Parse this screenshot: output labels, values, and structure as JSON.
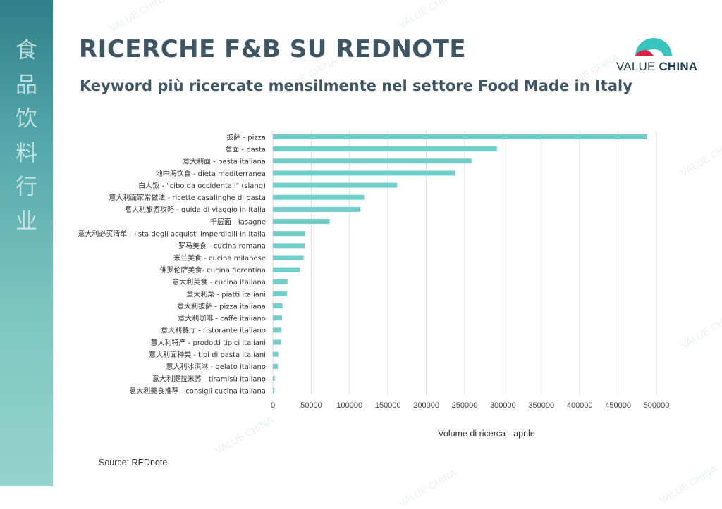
{
  "sidebar": {
    "chars": [
      "食",
      "品",
      "饮",
      "料",
      "行",
      "业"
    ]
  },
  "header": {
    "title": "RICERCHE F&B SU REDNOTE",
    "subtitle": "Keyword più ricercate mensilmente nel settore Food Made in Italy"
  },
  "logo": {
    "word1": "VALUE",
    "word2": "CHINA"
  },
  "watermark_text": "VALUE CHINA",
  "source": "Source:  REDnote",
  "colors": {
    "bar": "#6fcdca",
    "sidebar_top": "#2f7f88",
    "sidebar_bottom": "#95d3cc",
    "title": "#3e5563",
    "logo_red": "#e01e47",
    "logo_teal": "#39c3bd"
  },
  "chart_data": {
    "type": "bar",
    "orientation": "horizontal",
    "xlabel": "Volume di ricerca - aprile",
    "xlim": [
      0,
      500000
    ],
    "xticks": [
      0,
      50000,
      100000,
      150000,
      200000,
      250000,
      300000,
      350000,
      400000,
      450000,
      500000
    ],
    "grid": "vertical",
    "categories": [
      "披萨 - pizza",
      "意面 - pasta",
      "意大利面 - pasta italiana",
      "地中海饮食 - dieta mediterranea",
      "白人饭 - \"cibo da occidentali\" (slang)",
      "意大利面家常做法 - ricette casalinghe di pasta",
      "意大利旅游攻略 - guida di viaggio in Italia",
      "千层面 - lasagne",
      "意大利必买清单 - lista degli acquisti imperdibili in Italia",
      "罗马美食 - cucina romana",
      "米兰美食 - cucina milanese",
      "佛罗伦萨美食- cucina fiorentina",
      "意大利美食 - cucina italiana",
      "意大利菜 - piatti italiani",
      "意大利披萨 - pizza italiana",
      "意大利咖啡 - caffè italiano",
      "意大利餐厅 - ristorante italiano",
      "意大利特产 - prodotti tipici italiani",
      "意大利面种类 - tipi di pasta italiani",
      "意大利冰淇淋 - gelato italiano",
      "意大利提拉米苏 - tiramisù italiano",
      "意大利美食推荐 - consigli cucina italiana"
    ],
    "values": [
      488000,
      292000,
      259000,
      238000,
      162000,
      119000,
      114000,
      74000,
      42000,
      41500,
      40000,
      35000,
      19000,
      18500,
      12500,
      12000,
      11000,
      10500,
      7000,
      6500,
      2500,
      2000
    ]
  }
}
